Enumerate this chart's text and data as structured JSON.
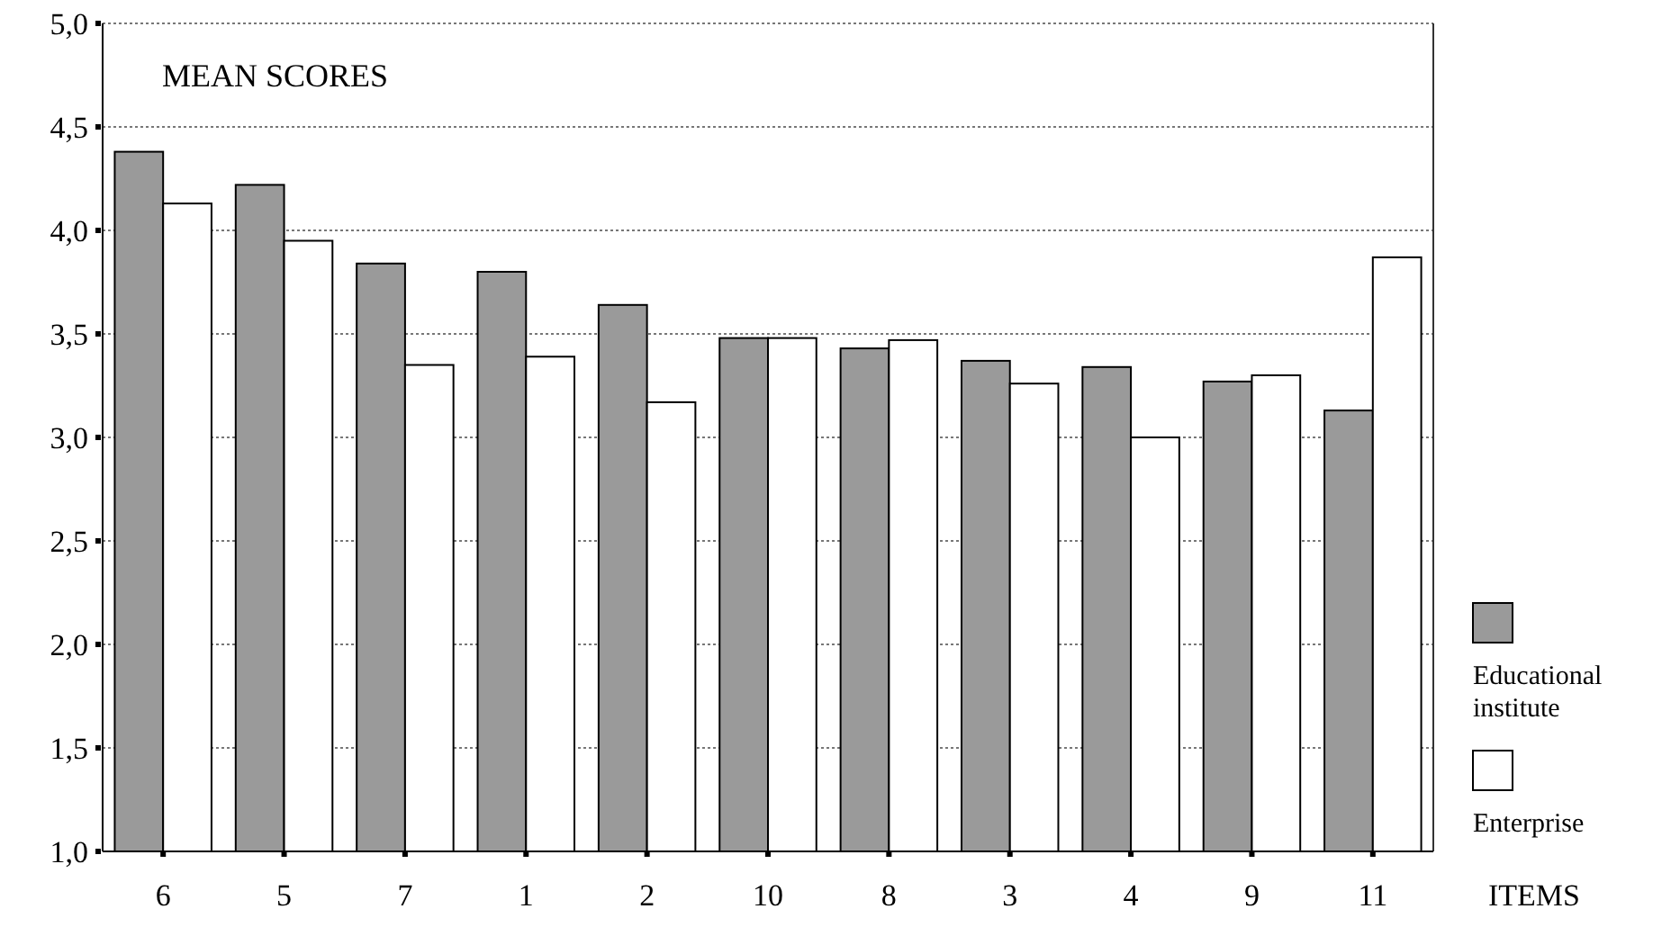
{
  "chart_data": {
    "type": "bar",
    "title": "MEAN SCORES",
    "xlabel": "ITEMS",
    "categories": [
      "6",
      "5",
      "7",
      "1",
      "2",
      "10",
      "8",
      "3",
      "4",
      "9",
      "11"
    ],
    "series": [
      {
        "name": "Educational institute",
        "color": "#9a9a9a",
        "values": [
          4.38,
          4.22,
          3.84,
          3.8,
          3.64,
          3.48,
          3.43,
          3.37,
          3.34,
          3.27,
          3.13
        ]
      },
      {
        "name": "Enterprise",
        "color": "#ffffff",
        "values": [
          4.13,
          3.95,
          3.35,
          3.39,
          3.17,
          3.48,
          3.47,
          3.26,
          3.0,
          3.3,
          3.87
        ]
      }
    ],
    "ylim": [
      1,
      5
    ],
    "yticks": [
      {
        "value": 1,
        "label": "1,0"
      },
      {
        "value": 1.5,
        "label": "1,5"
      },
      {
        "value": 2,
        "label": "2,0"
      },
      {
        "value": 2.5,
        "label": "2,5"
      },
      {
        "value": 3,
        "label": "3,0"
      },
      {
        "value": 3.5,
        "label": "3,5"
      },
      {
        "value": 4,
        "label": "4,0"
      },
      {
        "value": 4.5,
        "label": "4,5"
      },
      {
        "value": 5,
        "label": "5,0"
      }
    ],
    "grid": "y",
    "legend": "right"
  }
}
